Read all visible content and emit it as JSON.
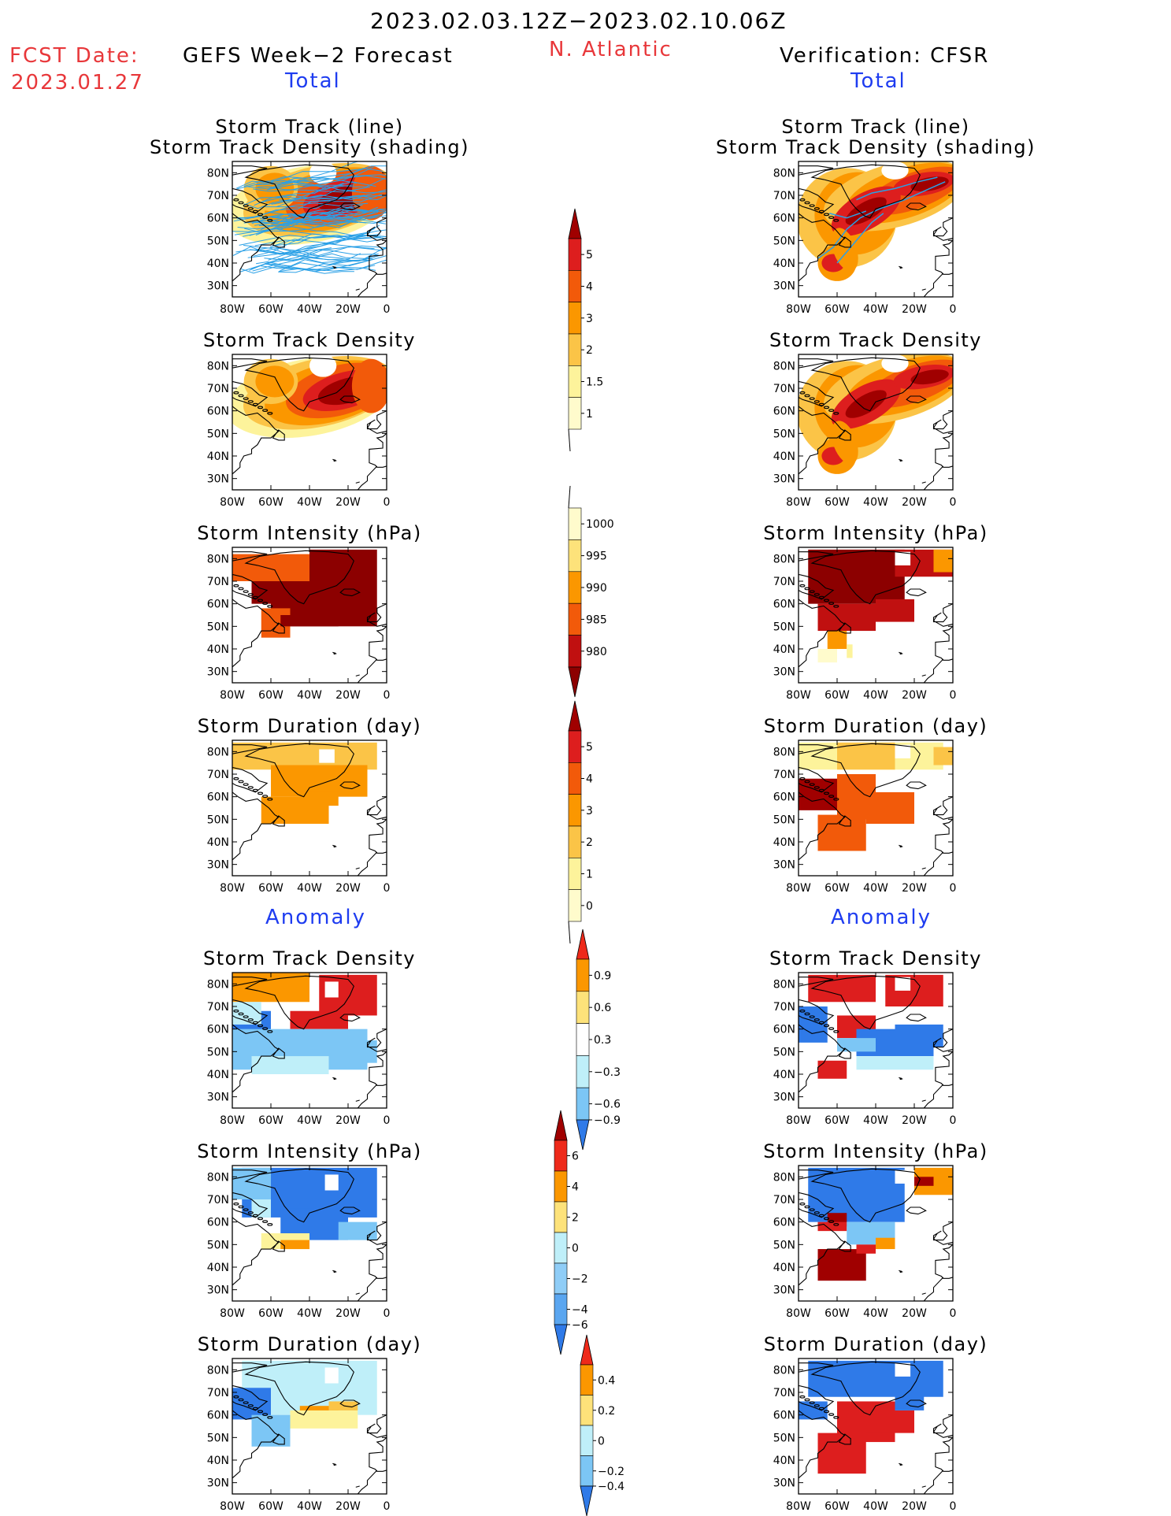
{
  "header": {
    "period": "2023.02.03.12Z−2023.02.10.06Z",
    "fcst_label": "FCST Date:",
    "fcst_date": "2023.01.27",
    "left_title": "GEFS Week−2 Forecast",
    "region": "N. Atlantic",
    "right_title": "Verification: CFSR",
    "total_left": "Total",
    "total_right": "Total",
    "anomaly_left": "Anomaly",
    "anomaly_right": "Anomaly"
  },
  "axes": {
    "lat_ticks": [
      "80N",
      "70N",
      "60N",
      "50N",
      "40N",
      "30N"
    ],
    "lon_ticks": [
      "80W",
      "60W",
      "40W",
      "20W",
      "0"
    ]
  },
  "panels": [
    {
      "id": "fc-track",
      "column": "forecast",
      "row": 0,
      "title1": "Storm Track (line)",
      "title2": "Storm Track Density (shading)",
      "field": "track-density"
    },
    {
      "id": "vf-track",
      "column": "verification",
      "row": 0,
      "title1": "Storm Track (line)",
      "title2": "Storm Track Density (shading)",
      "field": "track-density"
    },
    {
      "id": "fc-density",
      "column": "forecast",
      "row": 1,
      "title1": "Storm Track Density",
      "field": "density"
    },
    {
      "id": "vf-density",
      "column": "verification",
      "row": 1,
      "title1": "Storm Track Density",
      "field": "density"
    },
    {
      "id": "fc-intensity",
      "column": "forecast",
      "row": 2,
      "title1": "Storm Intensity (hPa)",
      "field": "intensity"
    },
    {
      "id": "vf-intensity",
      "column": "verification",
      "row": 2,
      "title1": "Storm Intensity (hPa)",
      "field": "intensity"
    },
    {
      "id": "fc-duration",
      "column": "forecast",
      "row": 3,
      "title1": "Storm Duration (day)",
      "field": "duration"
    },
    {
      "id": "vf-duration",
      "column": "verification",
      "row": 3,
      "title1": "Storm Duration (day)",
      "field": "duration"
    },
    {
      "id": "fc-anom-density",
      "column": "forecast",
      "row": 4,
      "title1": "Storm Track Density",
      "field": "anom-density"
    },
    {
      "id": "vf-anom-density",
      "column": "verification",
      "row": 4,
      "title1": "Storm Track Density",
      "field": "anom-density"
    },
    {
      "id": "fc-anom-intensity",
      "column": "forecast",
      "row": 5,
      "title1": "Storm Intensity (hPa)",
      "field": "anom-intensity"
    },
    {
      "id": "vf-anom-intensity",
      "column": "verification",
      "row": 5,
      "title1": "Storm Intensity (hPa)",
      "field": "anom-intensity"
    },
    {
      "id": "fc-anom-duration",
      "column": "forecast",
      "row": 6,
      "title1": "Storm Duration (day)",
      "field": "anom-duration"
    },
    {
      "id": "vf-anom-duration",
      "column": "verification",
      "row": 6,
      "title1": "Storm Duration (day)",
      "field": "anom-duration"
    }
  ],
  "colorbars": [
    {
      "id": "density",
      "labels": [
        "5",
        "4",
        "3",
        "2",
        "1.5",
        "1"
      ],
      "colors": [
        "#a00000",
        "#dd1e1e",
        "#f25a0a",
        "#fb9700",
        "#fbc447",
        "#fdf39b",
        "#fffbcc"
      ]
    },
    {
      "id": "intensity",
      "labels": [
        "1000",
        "995",
        "990",
        "985",
        "980"
      ],
      "colors": [
        "#fffbcc",
        "#fde27a",
        "#fb9700",
        "#f25a0a",
        "#c01010",
        "#8c0000"
      ]
    },
    {
      "id": "duration",
      "labels": [
        "5",
        "4",
        "3",
        "2",
        "1",
        "0"
      ],
      "colors": [
        "#a00000",
        "#dd1e1e",
        "#f25a0a",
        "#fb9700",
        "#fbc447",
        "#fdf39b",
        "#fffbcc"
      ]
    },
    {
      "id": "anom-density",
      "labels": [
        "0.9",
        "0.6",
        "0.3",
        "−0.3",
        "−0.6",
        "−0.9"
      ],
      "colors": [
        "#ee2a1a",
        "#fb9700",
        "#fde27a",
        "#ffffff",
        "#bfeff9",
        "#7cc6f5",
        "#2f7ae8"
      ]
    },
    {
      "id": "anom-intensity",
      "labels": [
        "6",
        "4",
        "2",
        "0",
        "−2",
        "−4",
        "−6"
      ],
      "colors": [
        "#a00000",
        "#ee2a1a",
        "#fb9700",
        "#fde27a",
        "#bfeff9",
        "#8fcdf7",
        "#5aa6f0",
        "#2f7ae8"
      ]
    },
    {
      "id": "anom-duration",
      "labels": [
        "0.4",
        "0.2",
        "0",
        "−0.2",
        "−0.4"
      ],
      "colors": [
        "#ee2a1a",
        "#fb9700",
        "#fde27a",
        "#bfeff9",
        "#7cc6f5",
        "#2f7ae8"
      ]
    }
  ],
  "palette": {
    "dark_red": "#a00000",
    "red": "#dd1e1e",
    "red_orange": "#f25a0a",
    "orange": "#fb9700",
    "light_orange": "#fbc447",
    "yellow": "#fdf39b",
    "pale": "#fffbcc",
    "light_blue": "#bfeff9",
    "mid_blue": "#7cc6f5",
    "blue": "#2f7ae8",
    "track_line": "#2aa0e6"
  }
}
